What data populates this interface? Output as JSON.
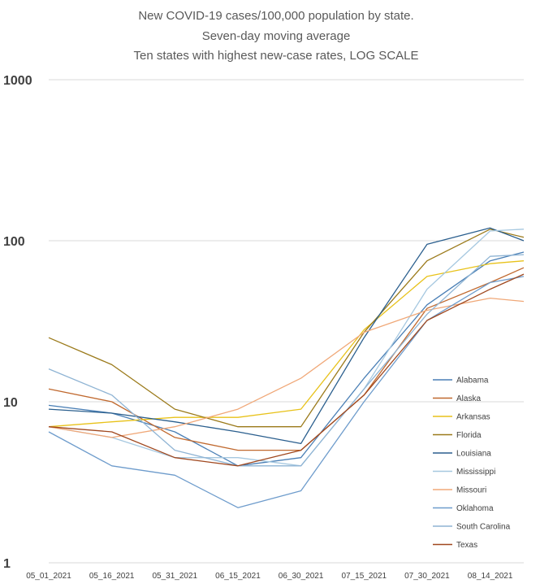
{
  "chart_data": {
    "type": "line",
    "title_lines": [
      "New COVID-19 cases/100,000 population by state.",
      "Seven-day moving average",
      "Ten states with highest new-case rates, LOG SCALE"
    ],
    "xlabel": "",
    "ylabel": "",
    "y_scale": "log",
    "ylim": [
      1,
      1000
    ],
    "y_ticks": [
      "1",
      "10",
      "100",
      "1000"
    ],
    "x_range": [
      "2021-05-01",
      "2021-08-22"
    ],
    "x_ticks": [
      "05_01_2021",
      "05_16_2021",
      "05_31_2021",
      "06_15_2021",
      "06_30_2021",
      "07_15_2021",
      "07_30_2021",
      "08_14_2021"
    ],
    "grid": true,
    "legend_position": "lower-right",
    "series": [
      {
        "name": "Alabama",
        "color": "#4a7fb5",
        "points": [
          [
            "2021-05-01",
            9.5
          ],
          [
            "2021-05-16",
            8.5
          ],
          [
            "2021-05-31",
            6.5
          ],
          [
            "2021-06-15",
            4.0
          ],
          [
            "2021-06-30",
            4.5
          ],
          [
            "2021-07-15",
            14
          ],
          [
            "2021-07-30",
            40
          ],
          [
            "2021-08-14",
            75
          ],
          [
            "2021-08-22",
            85
          ]
        ]
      },
      {
        "name": "Alaska",
        "color": "#c0692f",
        "points": [
          [
            "2021-05-01",
            12
          ],
          [
            "2021-05-16",
            10
          ],
          [
            "2021-05-31",
            6.0
          ],
          [
            "2021-06-15",
            5.0
          ],
          [
            "2021-06-30",
            5.0
          ],
          [
            "2021-07-15",
            11
          ],
          [
            "2021-07-30",
            38
          ],
          [
            "2021-08-14",
            55
          ],
          [
            "2021-08-22",
            68
          ]
        ]
      },
      {
        "name": "Arkansas",
        "color": "#e8c21a",
        "points": [
          [
            "2021-05-01",
            7.0
          ],
          [
            "2021-05-16",
            7.5
          ],
          [
            "2021-05-31",
            8.0
          ],
          [
            "2021-06-15",
            8.0
          ],
          [
            "2021-06-30",
            9.0
          ],
          [
            "2021-07-15",
            28
          ],
          [
            "2021-07-30",
            60
          ],
          [
            "2021-08-14",
            72
          ],
          [
            "2021-08-22",
            75
          ]
        ]
      },
      {
        "name": "Florida",
        "color": "#9b7a1a",
        "points": [
          [
            "2021-05-01",
            25
          ],
          [
            "2021-05-16",
            17
          ],
          [
            "2021-05-31",
            9.0
          ],
          [
            "2021-06-15",
            7.0
          ],
          [
            "2021-06-30",
            7.0
          ],
          [
            "2021-07-15",
            27
          ],
          [
            "2021-07-30",
            75
          ],
          [
            "2021-08-14",
            118
          ],
          [
            "2021-08-22",
            105
          ]
        ]
      },
      {
        "name": "Louisiana",
        "color": "#2b5f8e",
        "points": [
          [
            "2021-05-01",
            9.0
          ],
          [
            "2021-05-16",
            8.5
          ],
          [
            "2021-05-31",
            7.5
          ],
          [
            "2021-06-15",
            6.5
          ],
          [
            "2021-06-30",
            5.5
          ],
          [
            "2021-07-15",
            25
          ],
          [
            "2021-07-30",
            95
          ],
          [
            "2021-08-14",
            120
          ],
          [
            "2021-08-22",
            100
          ]
        ]
      },
      {
        "name": "Mississippi",
        "color": "#a6c8e0",
        "points": [
          [
            "2021-05-01",
            7.0
          ],
          [
            "2021-05-16",
            6.0
          ],
          [
            "2021-05-31",
            4.5
          ],
          [
            "2021-06-15",
            4.5
          ],
          [
            "2021-06-30",
            4.0
          ],
          [
            "2021-07-15",
            12
          ],
          [
            "2021-07-30",
            50
          ],
          [
            "2021-08-14",
            115
          ],
          [
            "2021-08-22",
            118
          ]
        ]
      },
      {
        "name": "Missouri",
        "color": "#f0a878",
        "points": [
          [
            "2021-05-01",
            7.0
          ],
          [
            "2021-05-16",
            6.0
          ],
          [
            "2021-05-31",
            7.0
          ],
          [
            "2021-06-15",
            9.0
          ],
          [
            "2021-06-30",
            14
          ],
          [
            "2021-07-15",
            27
          ],
          [
            "2021-07-30",
            37
          ],
          [
            "2021-08-14",
            44
          ],
          [
            "2021-08-22",
            42
          ]
        ]
      },
      {
        "name": "Oklahoma",
        "color": "#6e9ccc",
        "points": [
          [
            "2021-05-01",
            6.5
          ],
          [
            "2021-05-16",
            4.0
          ],
          [
            "2021-05-31",
            3.5
          ],
          [
            "2021-06-15",
            2.2
          ],
          [
            "2021-06-30",
            2.8
          ],
          [
            "2021-07-15",
            10
          ],
          [
            "2021-07-30",
            32
          ],
          [
            "2021-08-14",
            55
          ],
          [
            "2021-08-22",
            60
          ]
        ]
      },
      {
        "name": "South Carolina",
        "color": "#8fb4d4",
        "points": [
          [
            "2021-05-01",
            16
          ],
          [
            "2021-05-16",
            11
          ],
          [
            "2021-05-31",
            5.0
          ],
          [
            "2021-06-15",
            4.0
          ],
          [
            "2021-06-30",
            4.0
          ],
          [
            "2021-07-15",
            12
          ],
          [
            "2021-07-30",
            35
          ],
          [
            "2021-08-14",
            80
          ],
          [
            "2021-08-22",
            82
          ]
        ]
      },
      {
        "name": "Texas",
        "color": "#a0481f",
        "points": [
          [
            "2021-05-01",
            7.0
          ],
          [
            "2021-05-16",
            6.5
          ],
          [
            "2021-05-31",
            4.5
          ],
          [
            "2021-06-15",
            4.0
          ],
          [
            "2021-06-30",
            5.0
          ],
          [
            "2021-07-15",
            11
          ],
          [
            "2021-07-30",
            32
          ],
          [
            "2021-08-14",
            50
          ],
          [
            "2021-08-22",
            62
          ]
        ]
      }
    ]
  }
}
